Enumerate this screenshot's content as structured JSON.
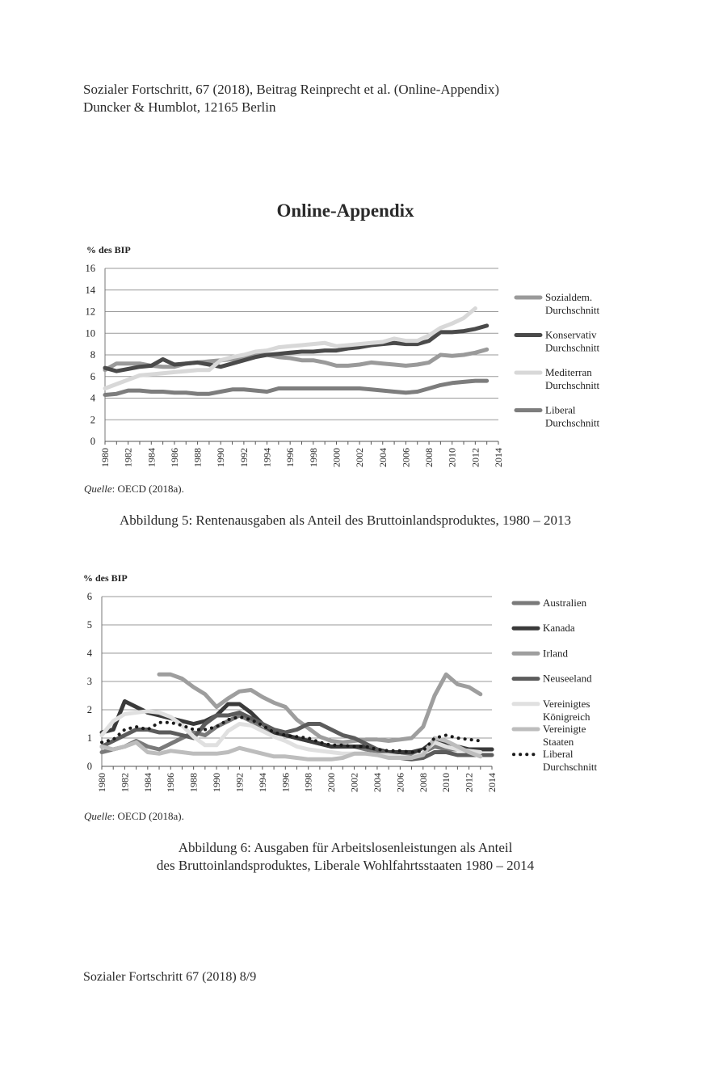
{
  "header": {
    "line1": "Sozialer Fortschritt, 67 (2018), Beitrag Reinprecht et al. (Online-Appendix)",
    "line2": "Duncker & Humblot, 12165 Berlin"
  },
  "page_title": "Online-Appendix",
  "figure1": {
    "source_label": "Quelle",
    "source_text": ": OECD (2018a).",
    "caption": "Abbildung 5: Rentenausgaben als Anteil des Bruttoinlandsproduktes, 1980 – 2013"
  },
  "figure2": {
    "source_label": "Quelle",
    "source_text": ": OECD (2018a).",
    "caption_line1": "Abbildung 6: Ausgaben für Arbeitslosenleistungen als Anteil",
    "caption_line2": "des Bruttoinlandsproduktes, Liberale Wohlfahrtsstaaten 1980 – 2014"
  },
  "footer": "Sozialer Fortschritt 67 (2018) 8/9",
  "chart_data": [
    {
      "type": "line",
      "title": "",
      "ylabel": "% des BIP",
      "xlabel": "",
      "ylim": [
        0,
        16
      ],
      "yticks": [
        0,
        2,
        4,
        6,
        8,
        10,
        12,
        14,
        16
      ],
      "xlim": [
        1980,
        2014
      ],
      "xticks": [
        1980,
        1982,
        1984,
        1986,
        1988,
        1990,
        1992,
        1994,
        1996,
        1998,
        2000,
        2002,
        2004,
        2006,
        2008,
        2010,
        2012,
        2014
      ],
      "grid": "horizontal",
      "legend_position": "right",
      "series": [
        {
          "name": "Sozialdem. Durchschnitt",
          "legend": [
            "Sozialdem.",
            "Durchschnitt"
          ],
          "color": "#9a9a9a",
          "x_start": 1980,
          "values": [
            6.6,
            7.2,
            7.2,
            7.2,
            7.0,
            6.9,
            6.9,
            7.2,
            7.3,
            7.4,
            7.5,
            7.6,
            7.8,
            8.0,
            8.0,
            7.8,
            7.7,
            7.5,
            7.5,
            7.3,
            7.0,
            7.0,
            7.1,
            7.3,
            7.2,
            7.1,
            7.0,
            7.1,
            7.3,
            8.0,
            7.9,
            8.0,
            8.2,
            8.5
          ]
        },
        {
          "name": "Konservativ Durchschnitt",
          "legend": [
            "Konservativ",
            "Durchschnitt"
          ],
          "color": "#4a4a4a",
          "x_start": 1980,
          "values": [
            6.8,
            6.5,
            6.7,
            6.9,
            7.0,
            7.6,
            7.1,
            7.2,
            7.3,
            7.1,
            6.9,
            7.2,
            7.5,
            7.8,
            8.0,
            8.1,
            8.2,
            8.3,
            8.3,
            8.4,
            8.4,
            8.6,
            8.7,
            8.9,
            9.0,
            9.1,
            9.0,
            9.0,
            9.3,
            10.1,
            10.1,
            10.2,
            10.4,
            10.7
          ]
        },
        {
          "name": "Mediterran Durchschnitt",
          "legend": [
            "Mediterran",
            "Durchschnitt"
          ],
          "color": "#d8d8d8",
          "x_start": 1980,
          "values": [
            4.9,
            5.3,
            5.7,
            6.1,
            6.2,
            6.3,
            6.4,
            6.5,
            6.6,
            6.6,
            7.5,
            7.8,
            8.0,
            8.3,
            8.4,
            8.7,
            8.8,
            8.9,
            9.0,
            9.1,
            8.8,
            8.9,
            9.0,
            9.1,
            9.2,
            9.5,
            9.3,
            9.3,
            9.8,
            10.5,
            10.9,
            11.4,
            12.3
          ]
        },
        {
          "name": "Liberal Durchschnitt",
          "legend": [
            "Liberal",
            "Durchschnitt"
          ],
          "color": "#7d7d7d",
          "x_start": 1980,
          "values": [
            4.3,
            4.4,
            4.7,
            4.7,
            4.6,
            4.6,
            4.5,
            4.5,
            4.4,
            4.4,
            4.6,
            4.8,
            4.8,
            4.7,
            4.6,
            4.9,
            4.9,
            4.9,
            4.9,
            4.9,
            4.9,
            4.9,
            4.9,
            4.8,
            4.7,
            4.6,
            4.5,
            4.6,
            4.9,
            5.2,
            5.4,
            5.5,
            5.6,
            5.6
          ]
        }
      ]
    },
    {
      "type": "line",
      "title": "",
      "ylabel": "% des BIP",
      "xlabel": "",
      "ylim": [
        0,
        6
      ],
      "yticks": [
        0,
        1,
        2,
        3,
        4,
        5,
        6
      ],
      "xlim": [
        1980,
        2014
      ],
      "xticks": [
        1980,
        1982,
        1984,
        1986,
        1988,
        1990,
        1992,
        1994,
        1996,
        1998,
        2000,
        2002,
        2004,
        2006,
        2008,
        2010,
        2012,
        2014
      ],
      "grid": "horizontal",
      "legend_position": "right",
      "series": [
        {
          "name": "Australien",
          "legend": [
            "Australien"
          ],
          "color": "#7a7a7a",
          "x_start": 1980,
          "values": [
            0.5,
            0.6,
            0.7,
            0.9,
            0.7,
            0.6,
            0.8,
            1.0,
            1.2,
            1.1,
            1.4,
            1.6,
            1.8,
            1.6,
            1.3,
            1.2,
            1.1,
            1.0,
            0.9,
            0.8,
            0.7,
            0.7,
            0.7,
            0.6,
            0.5,
            0.5,
            0.5,
            0.4,
            0.5,
            0.7,
            0.6,
            0.6,
            0.6,
            0.6,
            0.6
          ]
        },
        {
          "name": "Kanada",
          "legend": [
            "Kanada"
          ],
          "color": "#3a3a3a",
          "x_start": 1980,
          "values": [
            1.2,
            1.3,
            2.3,
            2.1,
            1.9,
            1.8,
            1.7,
            1.6,
            1.5,
            1.6,
            1.8,
            2.2,
            2.2,
            1.9,
            1.5,
            1.2,
            1.1,
            1.0,
            0.9,
            0.8,
            0.7,
            0.7,
            0.7,
            0.7,
            0.6,
            0.5,
            0.5,
            0.5,
            0.6,
            0.9,
            0.8,
            0.7,
            0.6,
            0.6,
            0.6
          ]
        },
        {
          "name": "Irland",
          "legend": [
            "Irland"
          ],
          "color": "#9e9e9e",
          "x_start": 1985,
          "values": [
            3.25,
            3.25,
            3.1,
            2.8,
            2.55,
            2.1,
            2.4,
            2.65,
            2.7,
            2.45,
            2.25,
            2.1,
            1.65,
            1.35,
            1.05,
            0.9,
            0.85,
            0.9,
            0.95,
            0.95,
            0.9,
            0.95,
            1.0,
            1.4,
            2.5,
            3.25,
            2.9,
            2.8,
            2.55
          ]
        },
        {
          "name": "Neuseeland",
          "legend": [
            "Neuseeland"
          ],
          "color": "#5c5c5c",
          "x_start": 1980,
          "values": [
            0.7,
            0.9,
            1.1,
            1.3,
            1.3,
            1.2,
            1.2,
            1.1,
            1.0,
            1.5,
            1.8,
            1.8,
            1.9,
            1.7,
            1.5,
            1.3,
            1.2,
            1.3,
            1.5,
            1.5,
            1.3,
            1.1,
            1.0,
            0.8,
            0.6,
            0.4,
            0.3,
            0.25,
            0.3,
            0.5,
            0.5,
            0.4,
            0.4,
            0.4,
            0.4
          ]
        },
        {
          "name": "Vereinigtes Königreich",
          "legend": [
            "Vereinigtes",
            "Königreich"
          ],
          "color": "#e0e0e0",
          "x_start": 1980,
          "values": [
            1.1,
            1.6,
            1.85,
            1.9,
            1.95,
            1.9,
            1.75,
            1.45,
            1.05,
            0.75,
            0.75,
            1.25,
            1.5,
            1.45,
            1.25,
            1.05,
            0.9,
            0.7,
            0.6,
            0.55,
            0.5,
            0.45,
            0.45,
            0.45,
            0.4,
            0.4,
            0.35,
            0.3,
            0.5,
            0.85,
            0.7,
            0.6,
            0.55,
            0.5
          ]
        },
        {
          "name": "Vereinigte Staaten",
          "legend": [
            "Vereinigte",
            "Staaten"
          ],
          "color": "#bdbdbd",
          "x_start": 1980,
          "values": [
            0.7,
            0.6,
            0.7,
            0.85,
            0.5,
            0.45,
            0.55,
            0.5,
            0.45,
            0.45,
            0.45,
            0.5,
            0.65,
            0.55,
            0.45,
            0.35,
            0.35,
            0.3,
            0.25,
            0.25,
            0.25,
            0.3,
            0.45,
            0.45,
            0.4,
            0.3,
            0.3,
            0.3,
            0.4,
            1.0,
            0.9,
            0.7,
            0.5,
            0.35
          ]
        },
        {
          "name": "Liberal Durchschnitt",
          "legend": [
            "Liberal",
            "Durchschnitt"
          ],
          "color": "#1a1a1a",
          "dotted": true,
          "x_start": 1980,
          "values": [
            0.85,
            0.95,
            1.3,
            1.4,
            1.3,
            1.55,
            1.55,
            1.45,
            1.3,
            1.3,
            1.4,
            1.65,
            1.75,
            1.65,
            1.45,
            1.2,
            1.1,
            1.05,
            1.0,
            0.85,
            0.75,
            0.75,
            0.7,
            0.7,
            0.6,
            0.55,
            0.55,
            0.5,
            0.55,
            1.0,
            1.1,
            1.0,
            0.95,
            0.9
          ]
        }
      ]
    }
  ]
}
